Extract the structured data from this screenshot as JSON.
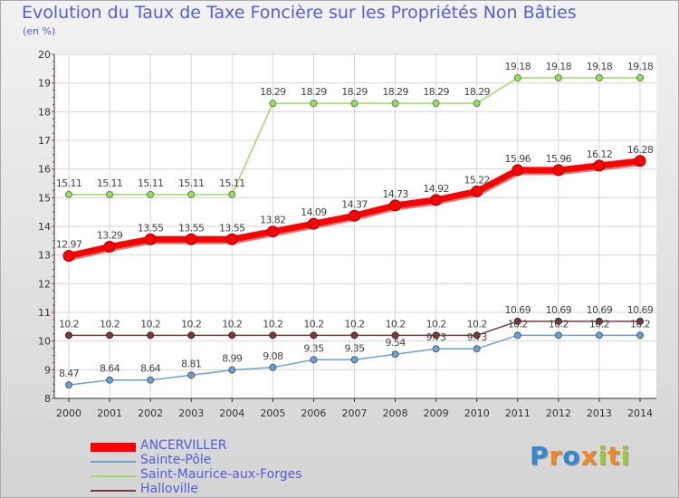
{
  "chart_data": {
    "type": "line",
    "title": "Evolution du Taux de Taxe Foncière sur les Propriétés Non Bâties",
    "ylabel": "(en %)",
    "xlabel": "",
    "x": [
      "2000",
      "2001",
      "2002",
      "2003",
      "2004",
      "2005",
      "2006",
      "2007",
      "2008",
      "2009",
      "2010",
      "2011",
      "2012",
      "2013",
      "2014"
    ],
    "ylim": [
      8,
      20
    ],
    "yticks": [
      "8",
      "9",
      "10",
      "11",
      "12",
      "13",
      "14",
      "15",
      "16",
      "17",
      "18",
      "19",
      "20"
    ],
    "grid": true,
    "legend_position": "bottom-left",
    "series": [
      {
        "name": "ANCERVILLER",
        "color": "#ff0000",
        "values": [
          12.97,
          13.29,
          13.55,
          13.55,
          13.55,
          13.82,
          14.09,
          14.37,
          14.73,
          14.92,
          15.22,
          15.96,
          15.96,
          16.12,
          16.28
        ],
        "labels": [
          "12.97",
          "13.29",
          "13.55",
          "13.55",
          "13.55",
          "13.82",
          "14.09",
          "14.37",
          "14.73",
          "14.92",
          "15.22",
          "15.96",
          "15.96",
          "16.12",
          "16.28"
        ]
      },
      {
        "name": "Sainte-Pôle",
        "color": "#6fa0d0",
        "values": [
          8.47,
          8.64,
          8.64,
          8.81,
          8.99,
          9.08,
          9.35,
          9.35,
          9.54,
          9.73,
          9.73,
          10.2,
          10.2,
          10.2,
          10.2
        ],
        "labels": [
          "8.47",
          "8.64",
          "8.64",
          "8.81",
          "8.99",
          "9.08",
          "9.35",
          "9.35",
          "9.54",
          "9.73",
          "9.73",
          "10.2",
          "10.2",
          "10.2",
          "10.2"
        ]
      },
      {
        "name": "Saint-Maurice-aux-Forges",
        "color": "#99dd66",
        "values": [
          15.11,
          15.11,
          15.11,
          15.11,
          15.11,
          18.29,
          18.29,
          18.29,
          18.29,
          18.29,
          18.29,
          19.18,
          19.18,
          19.18,
          19.18
        ],
        "labels": [
          "15.11",
          "15.11",
          "15.11",
          "15.11",
          "15.11",
          "18.29",
          "18.29",
          "18.29",
          "18.29",
          "18.29",
          "18.29",
          "19.18",
          "19.18",
          "19.18",
          "19.18"
        ]
      },
      {
        "name": "Halloville",
        "color": "#7a3b3b",
        "values": [
          10.2,
          10.2,
          10.2,
          10.2,
          10.2,
          10.2,
          10.2,
          10.2,
          10.2,
          10.2,
          10.2,
          10.69,
          10.69,
          10.69,
          10.69
        ],
        "labels": [
          "10.2",
          "10.2",
          "10.2",
          "10.2",
          "10.2",
          "10.2",
          "10.2",
          "10.2",
          "10.2",
          "10.2",
          "10.2",
          "10.69",
          "10.69",
          "10.69",
          "10.69"
        ]
      }
    ]
  },
  "logo": {
    "letters": [
      "P",
      "r",
      "o",
      "x",
      "i",
      "t",
      "i"
    ],
    "colors": [
      "#3388cc",
      "#ee8822",
      "#3388cc",
      "#ee8822",
      "#99cc33",
      "#ee8822",
      "#99cc33"
    ]
  }
}
